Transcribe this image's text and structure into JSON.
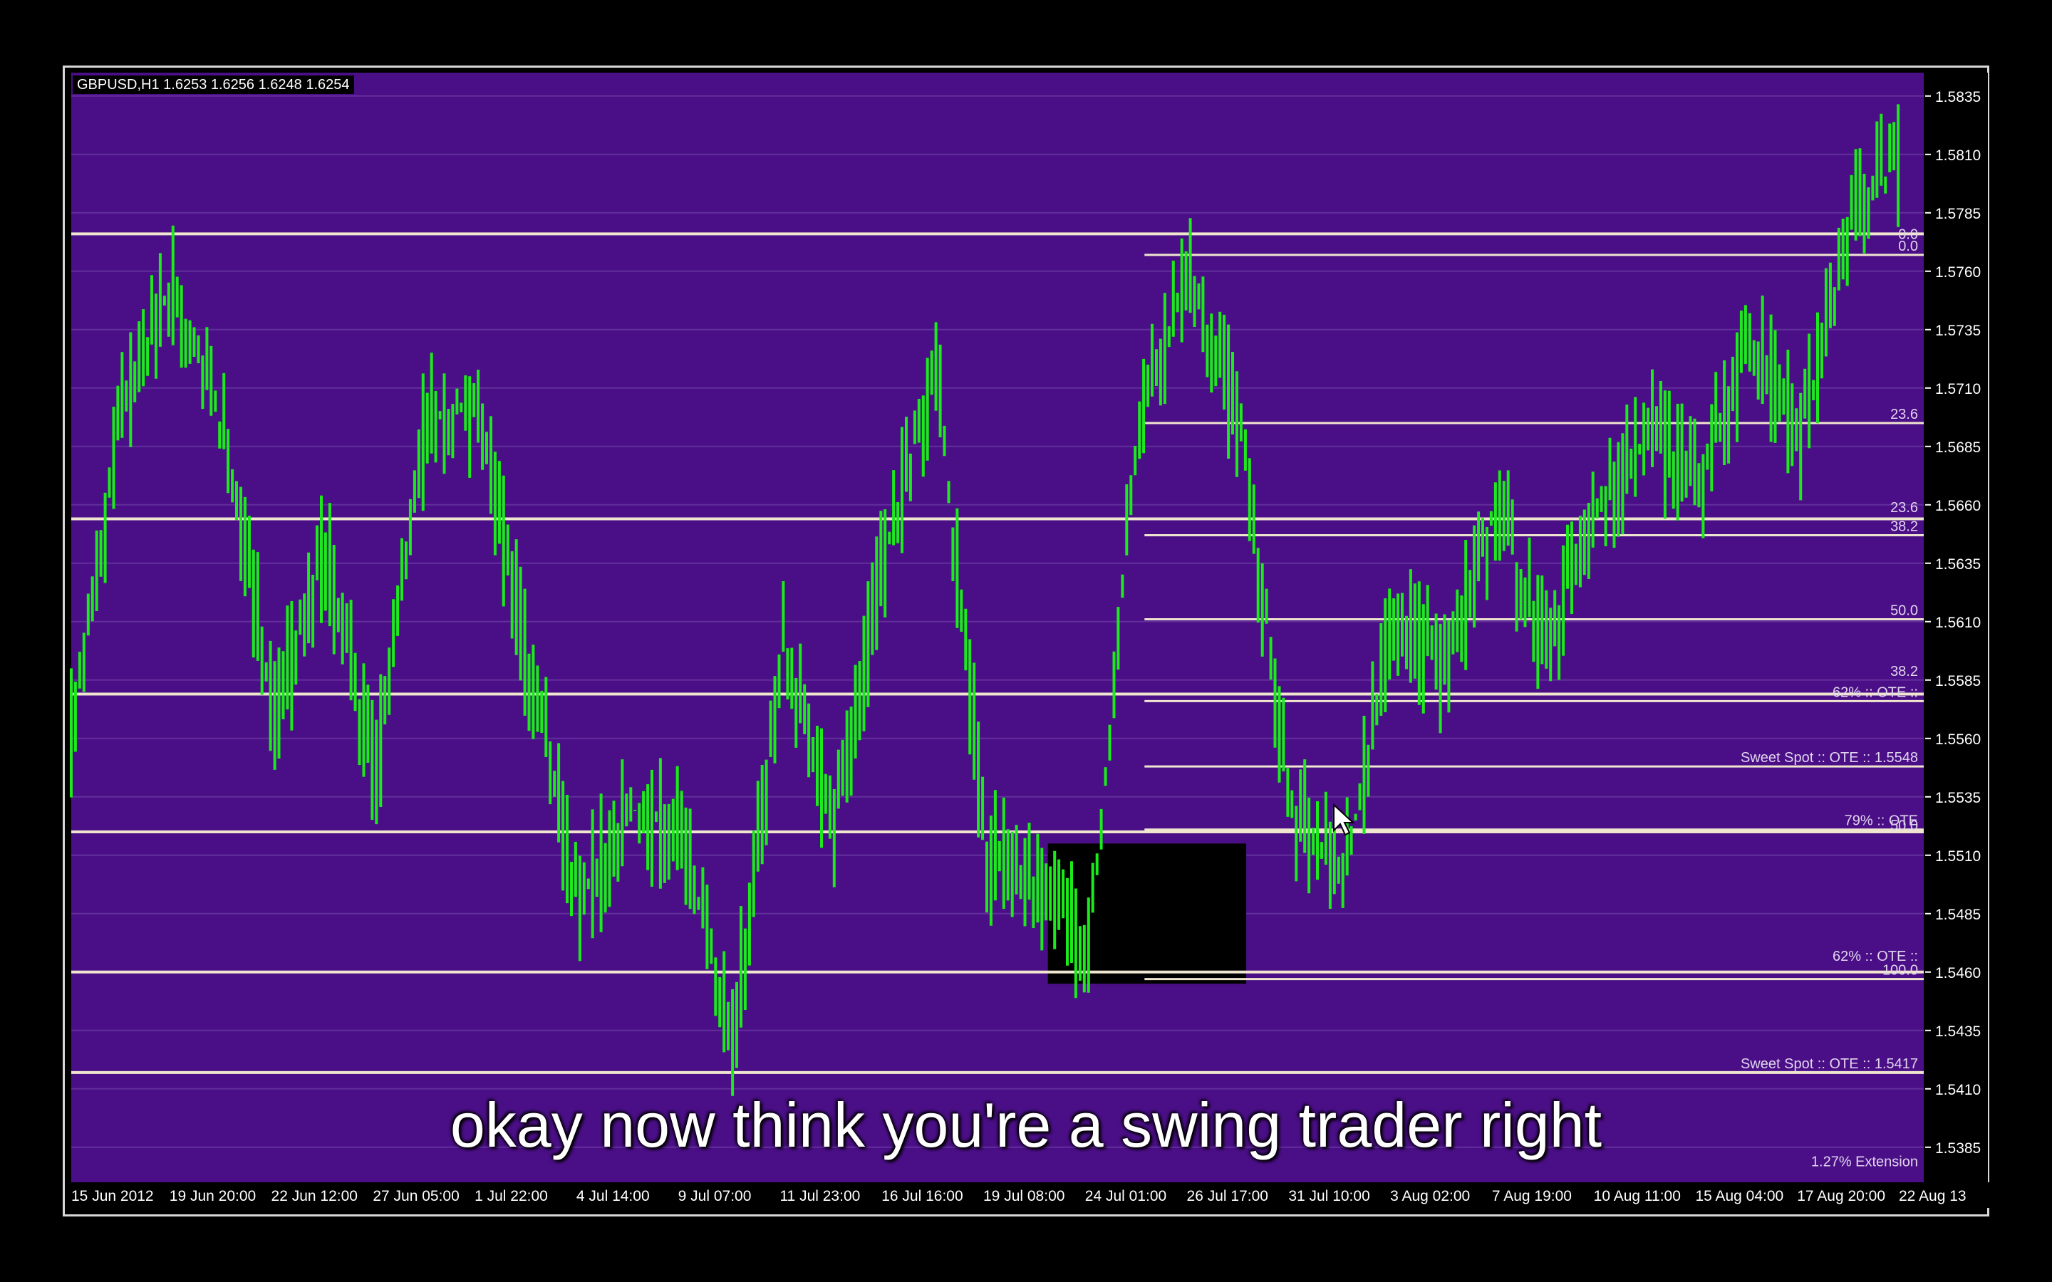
{
  "window": {
    "symbol_header": "GBPUSD,H1  1.6253 1.6256 1.6248 1.6254",
    "subtitle": "okay now think you're a swing trader right"
  },
  "colors": {
    "background": "#4a0f86",
    "price": "#1bea1b",
    "level_line": "#f0e6d0",
    "text": "#ffffff",
    "axis_bg": "#000000"
  },
  "chart_data": {
    "type": "line",
    "symbol": "GBPUSD",
    "timeframe": "H1",
    "price_range": [
      1.537,
      1.5845
    ],
    "y_ticks": [
      "1.5835",
      "1.5810",
      "1.5785",
      "1.5760",
      "1.5735",
      "1.5710",
      "1.5685",
      "1.5660",
      "1.5635",
      "1.5610",
      "1.5585",
      "1.5560",
      "1.5535",
      "1.5510",
      "1.5485",
      "1.5460",
      "1.5435",
      "1.5410",
      "1.5385"
    ],
    "x_ticks": [
      "15 Jun 2012",
      "19 Jun 20:00",
      "22 Jun 12:00",
      "27 Jun 05:00",
      "1 Jul 22:00",
      "4 Jul 14:00",
      "9 Jul 07:00",
      "11 Jul 23:00",
      "16 Jul 16:00",
      "19 Jul 08:00",
      "24 Jul 01:00",
      "26 Jul 17:00",
      "31 Jul 10:00",
      "3 Aug 02:00",
      "7 Aug 19:00",
      "10 Aug 11:00",
      "15 Aug 04:00",
      "17 Aug 20:00",
      "22 Aug 13"
    ],
    "series": [
      {
        "x_index": [
          0.0,
          0.5,
          1.0,
          1.5,
          2.0,
          2.5,
          3.0,
          3.5,
          4.0,
          4.5,
          5.0,
          5.5,
          6.0,
          6.5,
          7.0,
          7.5,
          8.0,
          8.5,
          9.0,
          9.5,
          10.0,
          10.5,
          11.0,
          11.5,
          12.0,
          12.5,
          13.0,
          13.5,
          14.0,
          14.5,
          15.0,
          15.5,
          16.0,
          16.5,
          17.0,
          17.5,
          18.0
        ],
        "values": [
          1.556,
          1.57,
          1.5755,
          1.569,
          1.557,
          1.564,
          1.5545,
          1.57,
          1.57,
          1.559,
          1.549,
          1.553,
          1.552,
          1.543,
          1.56,
          1.552,
          1.564,
          1.572,
          1.551,
          1.55,
          1.547,
          1.57,
          1.576,
          1.569,
          1.553,
          1.55,
          1.561,
          1.559,
          1.566,
          1.56,
          1.566,
          1.569,
          1.567,
          1.573,
          1.569,
          1.578,
          1.581
        ]
      }
    ],
    "horizontal_levels": [
      1.5776,
      1.5654,
      1.5579,
      1.552,
      1.546,
      1.5417
    ],
    "fib_levels": [
      {
        "label": "0.0",
        "price": 1.5767
      },
      {
        "label": "23.6",
        "price": 1.5695
      },
      {
        "label": "38.2",
        "price": 1.5647
      },
      {
        "label": "50.0",
        "price": 1.5611
      },
      {
        "label": "62% :: OTE ::",
        "price": 1.5576
      },
      {
        "label": "Sweet Spot :: OTE :: 1.5548",
        "price": 1.5548
      },
      {
        "label": "79% :: OTE",
        "price": 1.5521
      },
      {
        "label": "100.0",
        "price": 1.5457
      }
    ],
    "side_labels": [
      {
        "label": "0.0",
        "price": 1.5772
      },
      {
        "label": "23.6",
        "price": 1.5655
      },
      {
        "label": "38.2",
        "price": 1.5585
      },
      {
        "label": "50.0",
        "price": 1.5519
      },
      {
        "label": "62% :: OTE ::",
        "price": 1.5463
      },
      {
        "label": "Sweet Spot :: OTE :: 1.5417",
        "price": 1.5417
      },
      {
        "label": "1.27% Extension",
        "price": 1.5375
      }
    ],
    "highlight_box": {
      "x_from": 9.6,
      "x_to": 11.55,
      "price_top": 1.5515,
      "price_bottom": 1.5455
    },
    "grid": true
  }
}
